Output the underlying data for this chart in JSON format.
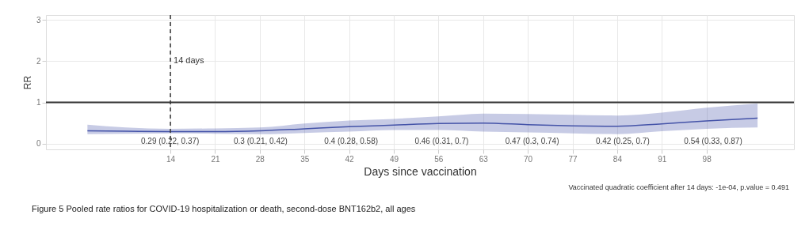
{
  "chart_data": {
    "type": "line",
    "title": "Figure 5 Pooled rate ratios for COVID-19 hospitalization or death, second-dose BNT162b2, all ages",
    "xlabel": "Days since vaccination",
    "ylabel": "RR",
    "x": [
      1,
      7,
      14,
      21,
      28,
      35,
      42,
      49,
      56,
      63,
      70,
      77,
      84,
      91,
      98,
      106
    ],
    "series": [
      {
        "color": "#4453a8",
        "values": [
          0.31,
          0.3,
          0.29,
          0.29,
          0.31,
          0.36,
          0.41,
          0.45,
          0.49,
          0.5,
          0.46,
          0.43,
          0.42,
          0.48,
          0.55,
          0.62
        ],
        "lower": [
          0.23,
          0.24,
          0.25,
          0.24,
          0.23,
          0.26,
          0.29,
          0.33,
          0.33,
          0.29,
          0.27,
          0.25,
          0.23,
          0.3,
          0.36,
          0.39
        ],
        "upper": [
          0.46,
          0.39,
          0.36,
          0.37,
          0.39,
          0.49,
          0.56,
          0.6,
          0.66,
          0.73,
          0.72,
          0.7,
          0.68,
          0.75,
          0.87,
          0.97
        ]
      }
    ],
    "xlim": [
      -5.5,
      111.7
    ],
    "xticks": [
      14,
      21,
      28,
      35,
      42,
      49,
      56,
      63,
      70,
      77,
      84,
      91,
      98
    ],
    "ylim": [
      -0.14,
      3.12
    ],
    "yticks": [
      0,
      1,
      2,
      3
    ],
    "ref_lines": [
      {
        "axis": "y",
        "value": 1,
        "color": "#333333",
        "line_style": "solid"
      },
      {
        "axis": "x",
        "value": 14,
        "label": "14 days",
        "color": "#333333",
        "line_style": "dashed"
      }
    ],
    "annotations": [
      "0.29 (0.22, 0.37)",
      "0.3 (0.21, 0.42)",
      "0.4 (0.28, 0.58)",
      "0.46 (0.31, 0.7)",
      "0.47 (0.3, 0.74)",
      "0.42 (0.25, 0.7)",
      "0.54 (0.33, 0.87)",
      "Vaccinated quadratic coefficient after 14 days: -1e-04, p.value = 0.491"
    ],
    "grid": true,
    "marker": "none",
    "line_style": "solid"
  }
}
